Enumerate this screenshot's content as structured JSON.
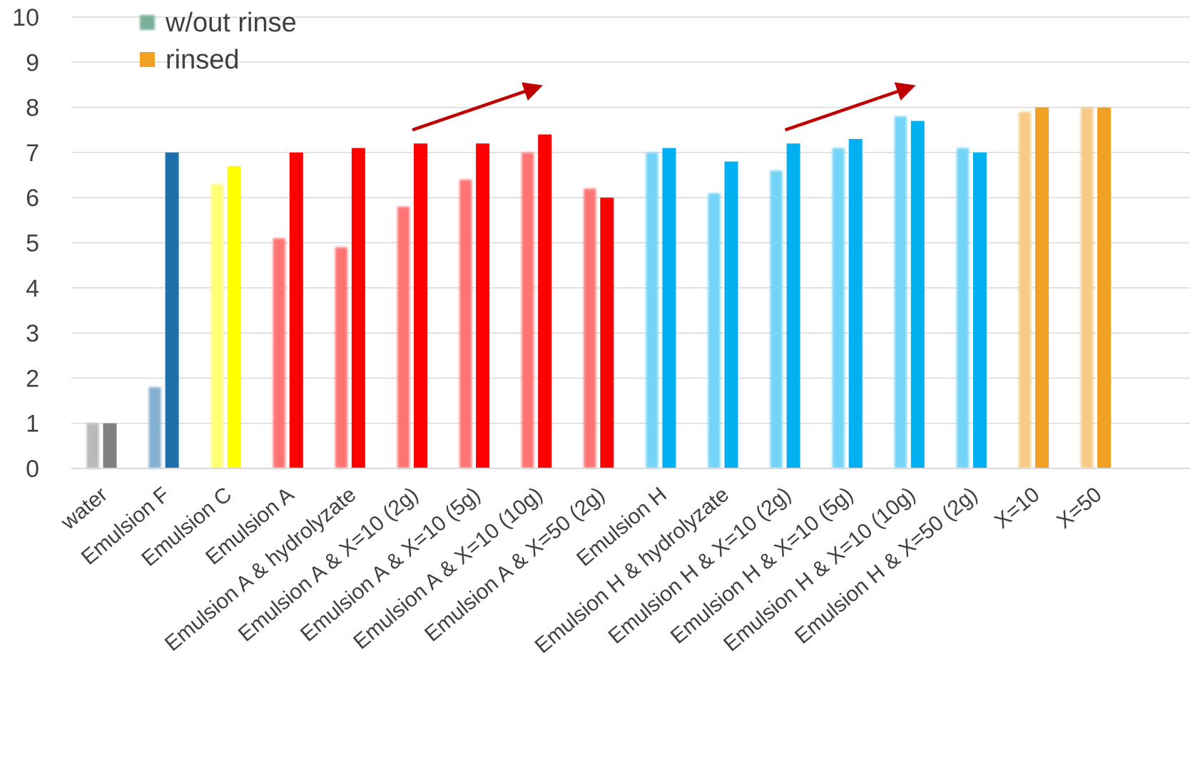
{
  "chart_data": {
    "type": "bar",
    "title": "",
    "xlabel": "",
    "ylabel": "",
    "ylim": [
      0,
      10
    ],
    "yticks": [
      "0",
      "1",
      "2",
      "3",
      "4",
      "5",
      "6",
      "7",
      "8",
      "9",
      "10"
    ],
    "grid": "horizontal",
    "legend": {
      "position": "top-left",
      "entries": [
        {
          "name": "w/out rinse",
          "color": "#3f8f6f",
          "style": "faded"
        },
        {
          "name": "rinsed",
          "color": "#f0a022",
          "style": "solid"
        }
      ]
    },
    "categories": [
      "water",
      "Emulsion F",
      "Emulsion C",
      "Emulsion A",
      "Emulsion A & hydrolyzate",
      "Emulsion A & X=10 (2g)",
      "Emulsion A & X=10 (5g)",
      "Emulsion A & X=10 (10g)",
      "Emulsion A & X=50 (2g)",
      "Emulsion H",
      "Emulsion H & hydrolyzate",
      "Emulsion H & X=10 (2g)",
      "Emulsion H & X=10 (5g)",
      "Emulsion H & X=10 (10g)",
      "Emulsion H & X=50 (2g)",
      "X=10",
      "X=50"
    ],
    "category_colors": [
      "#808080",
      "#1f6fab",
      "#ffff00",
      "#ff0000",
      "#ff0000",
      "#ff0000",
      "#ff0000",
      "#ff0000",
      "#ff0000",
      "#00b0f0",
      "#00b0f0",
      "#00b0f0",
      "#00b0f0",
      "#00b0f0",
      "#00b0f0",
      "#f0a022",
      "#f0a022"
    ],
    "series": [
      {
        "name": "w/out rinse",
        "values": [
          1.0,
          1.8,
          6.3,
          5.1,
          4.9,
          5.8,
          6.4,
          7.0,
          6.2,
          7.0,
          6.1,
          6.6,
          7.1,
          7.8,
          7.1,
          7.9,
          8.0
        ]
      },
      {
        "name": "rinsed",
        "values": [
          1.0,
          7.0,
          6.7,
          7.0,
          7.1,
          7.2,
          7.2,
          7.4,
          6.0,
          7.1,
          6.8,
          7.2,
          7.3,
          7.7,
          7.0,
          8.0,
          8.0
        ]
      }
    ],
    "annotations": [
      {
        "type": "arrow",
        "color": "#c00000",
        "from_category": 5,
        "to_category": 7,
        "from_value": 7.5,
        "to_value": 8.5
      },
      {
        "type": "arrow",
        "color": "#c00000",
        "from_category": 11,
        "to_category": 13,
        "from_value": 7.5,
        "to_value": 8.5
      }
    ]
  }
}
